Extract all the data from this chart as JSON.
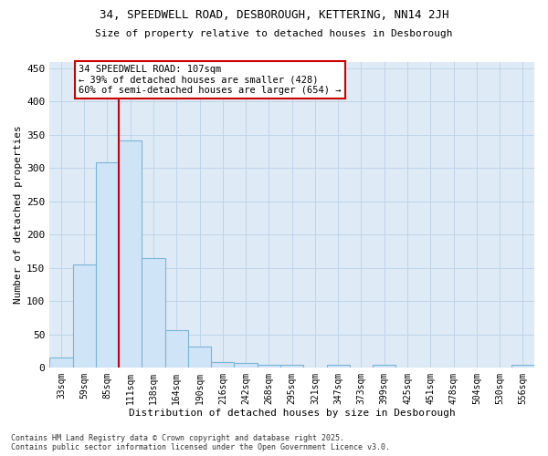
{
  "title1": "34, SPEEDWELL ROAD, DESBOROUGH, KETTERING, NN14 2JH",
  "title2": "Size of property relative to detached houses in Desborough",
  "xlabel": "Distribution of detached houses by size in Desborough",
  "ylabel": "Number of detached properties",
  "categories": [
    "33sqm",
    "59sqm",
    "85sqm",
    "111sqm",
    "138sqm",
    "164sqm",
    "190sqm",
    "216sqm",
    "242sqm",
    "268sqm",
    "295sqm",
    "321sqm",
    "347sqm",
    "373sqm",
    "399sqm",
    "425sqm",
    "451sqm",
    "478sqm",
    "504sqm",
    "530sqm",
    "556sqm"
  ],
  "values": [
    15,
    155,
    308,
    342,
    165,
    57,
    32,
    9,
    7,
    5,
    4,
    0,
    4,
    0,
    5,
    0,
    0,
    0,
    0,
    0,
    4
  ],
  "bar_color": "#d0e4f7",
  "bar_edge_color": "#7ab4d8",
  "grid_color": "#c0d4e8",
  "background_color": "#deeaf5",
  "vline_color": "#cc0000",
  "annotation_text": "34 SPEEDWELL ROAD: 107sqm\n← 39% of detached houses are smaller (428)\n60% of semi-detached houses are larger (654) →",
  "annotation_box_color": "#cc0000",
  "footer": "Contains HM Land Registry data © Crown copyright and database right 2025.\nContains public sector information licensed under the Open Government Licence v3.0.",
  "ylim": [
    0,
    460
  ],
  "yticks": [
    0,
    50,
    100,
    150,
    200,
    250,
    300,
    350,
    400,
    450
  ]
}
